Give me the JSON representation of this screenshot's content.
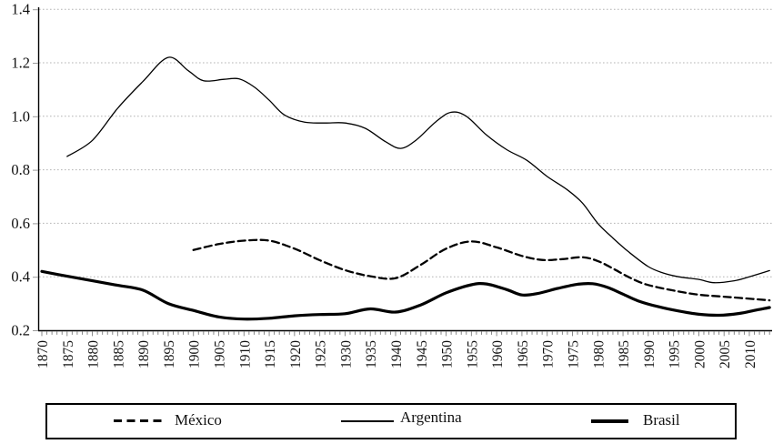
{
  "chart_data": {
    "type": "line",
    "title": "",
    "xlabel": "",
    "ylabel": "",
    "xlim": [
      1870,
      2014
    ],
    "ylim": [
      0.2,
      1.4
    ],
    "grid": "horizontal-dotted",
    "grid_color": "#b4b4b4",
    "axis_color": "#000000",
    "line_color": "#000000",
    "legend_position": "bottom-box",
    "y_tick_labels": [
      "1.4",
      "1.2",
      "1.0",
      "0.8",
      "0.6",
      "0.4",
      "0.2"
    ],
    "y_tick_values": [
      1.4,
      1.2,
      1.0,
      0.8,
      0.6,
      0.4,
      0.2
    ],
    "x_tick_labels": [
      "1870",
      "1875",
      "1880",
      "1885",
      "1890",
      "1895",
      "1900",
      "1905",
      "1910",
      "1915",
      "1920",
      "1925",
      "1930",
      "1935",
      "1940",
      "1945",
      "1950",
      "1955",
      "1960",
      "1965",
      "1970",
      "1975",
      "1980",
      "1985",
      "1990",
      "1995",
      "2000",
      "2005",
      "2010"
    ],
    "minor_ticks_every_year": true,
    "series": [
      {
        "name": "México",
        "style": "dashed",
        "stroke_width": 2.3,
        "points": [
          [
            1900,
            0.5
          ],
          [
            1905,
            0.522
          ],
          [
            1910,
            0.535
          ],
          [
            1915,
            0.535
          ],
          [
            1920,
            0.505
          ],
          [
            1925,
            0.462
          ],
          [
            1930,
            0.425
          ],
          [
            1935,
            0.402
          ],
          [
            1940,
            0.395
          ],
          [
            1945,
            0.445
          ],
          [
            1950,
            0.505
          ],
          [
            1955,
            0.532
          ],
          [
            1960,
            0.51
          ],
          [
            1965,
            0.478
          ],
          [
            1969,
            0.463
          ],
          [
            1973,
            0.466
          ],
          [
            1977,
            0.473
          ],
          [
            1980,
            0.459
          ],
          [
            1983,
            0.431
          ],
          [
            1986,
            0.4
          ],
          [
            1989,
            0.375
          ],
          [
            1992,
            0.36
          ],
          [
            1996,
            0.345
          ],
          [
            2000,
            0.333
          ],
          [
            2004,
            0.327
          ],
          [
            2008,
            0.321
          ],
          [
            2014,
            0.312
          ]
        ]
      },
      {
        "name": "Argentina",
        "style": "solid-thin",
        "stroke_width": 1.3,
        "points": [
          [
            1875,
            0.85
          ],
          [
            1880,
            0.91
          ],
          [
            1885,
            1.03
          ],
          [
            1890,
            1.13
          ],
          [
            1895,
            1.22
          ],
          [
            1899,
            1.17
          ],
          [
            1902,
            1.133
          ],
          [
            1906,
            1.138
          ],
          [
            1909,
            1.14
          ],
          [
            1912,
            1.11
          ],
          [
            1915,
            1.06
          ],
          [
            1918,
            1.005
          ],
          [
            1922,
            0.978
          ],
          [
            1926,
            0.975
          ],
          [
            1930,
            0.975
          ],
          [
            1934,
            0.955
          ],
          [
            1938,
            0.905
          ],
          [
            1941,
            0.88
          ],
          [
            1944,
            0.91
          ],
          [
            1948,
            0.98
          ],
          [
            1951,
            1.015
          ],
          [
            1954,
            1.0
          ],
          [
            1958,
            0.93
          ],
          [
            1962,
            0.875
          ],
          [
            1966,
            0.835
          ],
          [
            1970,
            0.775
          ],
          [
            1974,
            0.725
          ],
          [
            1977,
            0.675
          ],
          [
            1980,
            0.6
          ],
          [
            1983,
            0.545
          ],
          [
            1986,
            0.495
          ],
          [
            1990,
            0.438
          ],
          [
            1993,
            0.414
          ],
          [
            1996,
            0.4
          ],
          [
            2000,
            0.39
          ],
          [
            2003,
            0.378
          ],
          [
            2007,
            0.385
          ],
          [
            2010,
            0.4
          ],
          [
            2014,
            0.423
          ]
        ]
      },
      {
        "name": "Brasil",
        "style": "solid-thick",
        "stroke_width": 3.2,
        "points": [
          [
            1870,
            0.42
          ],
          [
            1875,
            0.402
          ],
          [
            1880,
            0.385
          ],
          [
            1885,
            0.368
          ],
          [
            1890,
            0.35
          ],
          [
            1895,
            0.3
          ],
          [
            1900,
            0.274
          ],
          [
            1905,
            0.25
          ],
          [
            1910,
            0.242
          ],
          [
            1915,
            0.245
          ],
          [
            1920,
            0.254
          ],
          [
            1925,
            0.259
          ],
          [
            1930,
            0.262
          ],
          [
            1935,
            0.28
          ],
          [
            1940,
            0.268
          ],
          [
            1945,
            0.295
          ],
          [
            1950,
            0.34
          ],
          [
            1955,
            0.37
          ],
          [
            1958,
            0.373
          ],
          [
            1962,
            0.352
          ],
          [
            1965,
            0.332
          ],
          [
            1968,
            0.337
          ],
          [
            1972,
            0.356
          ],
          [
            1976,
            0.372
          ],
          [
            1979,
            0.374
          ],
          [
            1982,
            0.36
          ],
          [
            1985,
            0.335
          ],
          [
            1988,
            0.31
          ],
          [
            1992,
            0.288
          ],
          [
            1996,
            0.272
          ],
          [
            2000,
            0.26
          ],
          [
            2004,
            0.256
          ],
          [
            2008,
            0.263
          ],
          [
            2011,
            0.274
          ],
          [
            2014,
            0.285
          ]
        ]
      }
    ]
  },
  "legend": {
    "items": [
      {
        "label": "México",
        "sample": "dashed-line"
      },
      {
        "label": "Argentina",
        "sample": "thin-solid-line"
      },
      {
        "label": "Brasil",
        "sample": "thick-solid-line"
      }
    ]
  }
}
